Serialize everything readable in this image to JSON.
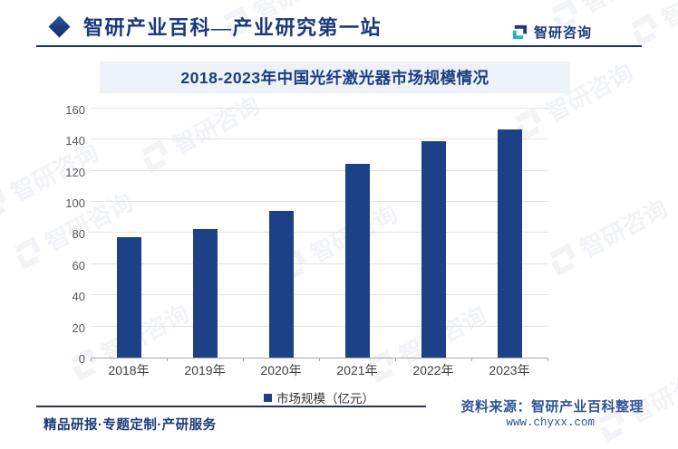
{
  "header": {
    "title": "智研产业百科—产业研究第一站",
    "brand": "智研咨询",
    "diamond_icon": "diamond-icon",
    "brand_icon": "zhiyan-logo-icon"
  },
  "chart_data": {
    "type": "bar",
    "title": "2018-2023年中国光纤激光器市场规模情况",
    "categories": [
      "2018年",
      "2019年",
      "2020年",
      "2021年",
      "2022年",
      "2023年"
    ],
    "values": [
      77.2,
      82.5,
      94.2,
      124.5,
      139.1,
      146.5
    ],
    "xlabel": "",
    "ylabel": "",
    "ylim": [
      0,
      160
    ],
    "yticks": [
      0,
      20,
      40,
      60,
      80,
      100,
      120,
      140,
      160
    ],
    "grid": true,
    "legend_position": "bottom",
    "legend": [
      {
        "label": "市场规模（亿元）",
        "color": "#1c4186"
      }
    ],
    "bar_color": "#1c4186"
  },
  "footer": {
    "left": "精品研报·专题定制·产研服务",
    "source": "资料来源：智研产业百科整理",
    "website": "www.chyxx.com"
  },
  "watermark": {
    "text": "智研咨询"
  },
  "colors": {
    "brand_navy": "#1a3a7c",
    "bar": "#1c4186",
    "banner_bg": "#edf2f9",
    "gridline": "#e3e3e3",
    "axis": "#a8a8a8",
    "ytick_text": "#595959",
    "xtick_text": "#3f3f3f",
    "source_text": "#2f5496",
    "teal_accent": "#2bb3c0"
  }
}
